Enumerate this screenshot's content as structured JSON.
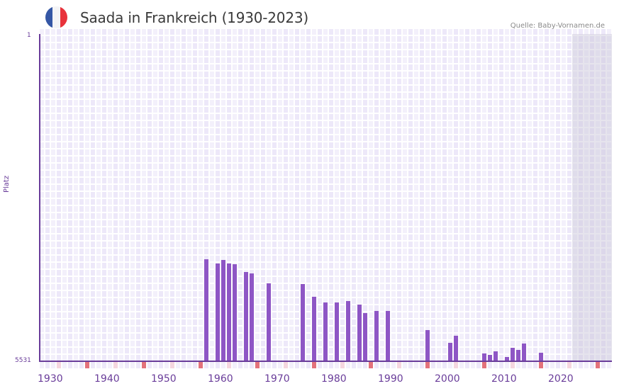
{
  "header": {
    "title": "Saada in Frankreich (1930-2023)",
    "source": "Quelle: Baby-Vornamen.de",
    "flag_colors": [
      "#3557a5",
      "#f4f4f6",
      "#e8323b"
    ]
  },
  "colors": {
    "bar": "#8e56c5",
    "axis": "#6a3d9a",
    "grid_a": "#ede8f9",
    "grid_b": "#f3f0fb",
    "decade_marker": "#e3727b",
    "halfdecade_marker": "#f5d6df",
    "future_shade": "#ddd8e6"
  },
  "chart_data": {
    "type": "bar",
    "title": "Saada in Frankreich (1930-2023)",
    "xlabel": "",
    "ylabel": "Platz",
    "ylim": [
      5531,
      1
    ],
    "y_inverted": true,
    "y_ticks": [
      "1",
      "5531"
    ],
    "x_ticks": [
      "1930",
      "1940",
      "1950",
      "1960",
      "1970",
      "1980",
      "1990",
      "2000",
      "2010",
      "2020"
    ],
    "x_range": [
      1930,
      2030
    ],
    "shaded_future_from": 2024,
    "grid": true,
    "legend": null,
    "x": [
      1959,
      1961,
      1962,
      1963,
      1964,
      1966,
      1967,
      1970,
      1976,
      1978,
      1980,
      1982,
      1984,
      1986,
      1987,
      1989,
      1991,
      1998,
      2002,
      2003,
      2008,
      2009,
      2010,
      2012,
      2013,
      2014,
      2015,
      2018
    ],
    "values": [
      3812,
      3884,
      3824,
      3884,
      3896,
      4028,
      4052,
      4220,
      4232,
      4437,
      4533,
      4533,
      4509,
      4569,
      4713,
      4677,
      4677,
      5002,
      5218,
      5098,
      5399,
      5423,
      5363,
      5459,
      5303,
      5339,
      5230,
      5387
    ]
  },
  "axis": {
    "y_top_label": "1",
    "y_bottom_label": "5531",
    "y_title": "Platz"
  }
}
